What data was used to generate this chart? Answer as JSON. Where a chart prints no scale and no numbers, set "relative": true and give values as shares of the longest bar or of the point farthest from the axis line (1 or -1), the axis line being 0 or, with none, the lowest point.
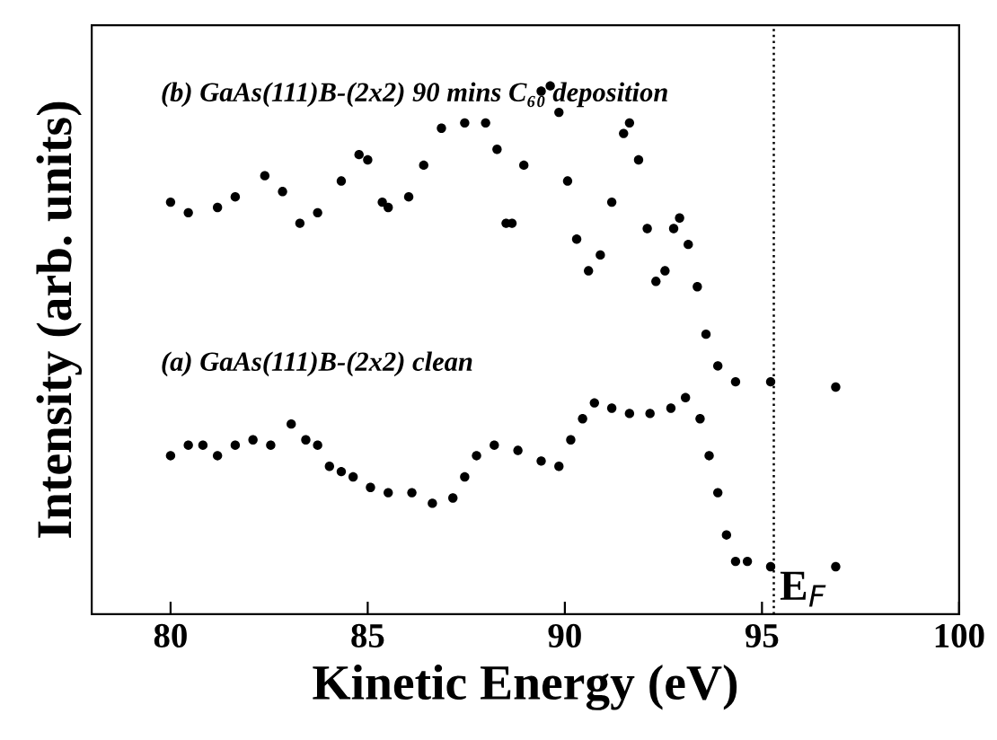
{
  "chart_data": {
    "type": "scatter",
    "relative": true,
    "xlabel": "Kinetic Energy (eV)",
    "ylabel": "Intensity (arb. units)",
    "xlim": [
      78,
      100
    ],
    "xticks": [
      80,
      85,
      90,
      95,
      100
    ],
    "marker": "circle",
    "grid": false,
    "legend": false,
    "series": [
      {
        "name": "(b) GaAs(111)B-(2x2) 90 mins C₆₀ deposition",
        "color": "#000000",
        "x": [
          80.0,
          80.45,
          81.19,
          81.64,
          82.39,
          82.84,
          83.28,
          83.73,
          84.33,
          84.78,
          85.0,
          85.37,
          85.52,
          86.04,
          86.42,
          86.87,
          87.46,
          87.99,
          88.28,
          88.51,
          88.66,
          88.96,
          89.4,
          89.63,
          89.85,
          90.07,
          90.3,
          90.6,
          90.9,
          91.19,
          91.49,
          91.64,
          91.87,
          92.09,
          92.31,
          92.54,
          92.76,
          92.91,
          93.13,
          93.36,
          93.58,
          93.88,
          94.33,
          95.22,
          96.87
        ],
        "values": [
          0.78,
          0.76,
          0.77,
          0.79,
          0.83,
          0.8,
          0.74,
          0.76,
          0.82,
          0.87,
          0.86,
          0.78,
          0.77,
          0.79,
          0.85,
          0.92,
          0.93,
          0.93,
          0.88,
          0.74,
          0.74,
          0.85,
          0.99,
          1.0,
          0.95,
          0.82,
          0.71,
          0.65,
          0.68,
          0.78,
          0.91,
          0.93,
          0.86,
          0.73,
          0.63,
          0.65,
          0.73,
          0.75,
          0.7,
          0.62,
          0.53,
          0.47,
          0.44,
          0.44,
          0.43
        ]
      },
      {
        "name": "(a) GaAs(111)B-(2x2) clean",
        "color": "#000000",
        "x": [
          80.0,
          80.45,
          80.82,
          81.19,
          81.64,
          82.09,
          82.54,
          83.06,
          83.43,
          83.73,
          84.03,
          84.33,
          84.63,
          85.07,
          85.52,
          86.12,
          86.64,
          87.16,
          87.46,
          87.76,
          88.21,
          88.81,
          89.4,
          89.85,
          90.15,
          90.45,
          90.75,
          91.19,
          91.64,
          92.16,
          92.69,
          93.06,
          93.43,
          93.66,
          93.88,
          94.1,
          94.33,
          94.63,
          95.22,
          96.87
        ],
        "values": [
          0.3,
          0.32,
          0.32,
          0.3,
          0.32,
          0.33,
          0.32,
          0.36,
          0.33,
          0.32,
          0.28,
          0.27,
          0.26,
          0.24,
          0.23,
          0.23,
          0.21,
          0.22,
          0.26,
          0.3,
          0.32,
          0.31,
          0.29,
          0.28,
          0.33,
          0.37,
          0.4,
          0.39,
          0.38,
          0.38,
          0.39,
          0.41,
          0.37,
          0.3,
          0.23,
          0.15,
          0.1,
          0.1,
          0.09,
          0.09
        ]
      }
    ],
    "ref_lines": [
      {
        "axis": "x",
        "value": 95.3,
        "label": "E$_{F}$",
        "line_style": "dotted",
        "color": "#000000"
      }
    ]
  }
}
